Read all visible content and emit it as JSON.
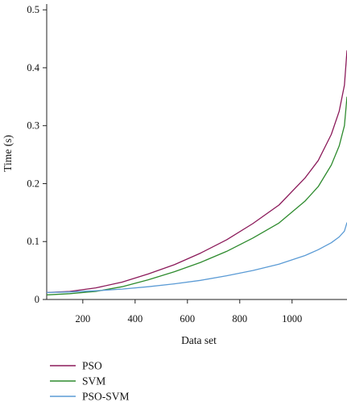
{
  "chart_data": {
    "type": "line",
    "xlabel": "Data set",
    "ylabel": "Time (s)",
    "xlim": [
      62,
      1210
    ],
    "ylim": [
      0,
      0.51
    ],
    "xticks": [
      200,
      400,
      600,
      800,
      1000
    ],
    "yticks": [
      0,
      0.1,
      0.2,
      0.3,
      0.4,
      0.5
    ],
    "ytick_labels": [
      "0",
      "0.1",
      "0.2",
      "0.3",
      "0.4",
      "0.5"
    ],
    "grid": false,
    "legend_position": "bottom-left",
    "series": [
      {
        "name": "PSO",
        "color": "#8b1a5a",
        "x": [
          62,
          150,
          250,
          350,
          450,
          550,
          650,
          750,
          850,
          950,
          1050,
          1100,
          1150,
          1180,
          1200,
          1210
        ],
        "y": [
          0.012,
          0.014,
          0.02,
          0.03,
          0.044,
          0.06,
          0.08,
          0.103,
          0.131,
          0.163,
          0.21,
          0.24,
          0.285,
          0.325,
          0.37,
          0.43
        ]
      },
      {
        "name": "SVM",
        "color": "#2e8b2e",
        "x": [
          62,
          150,
          250,
          350,
          450,
          550,
          650,
          750,
          850,
          950,
          1050,
          1100,
          1150,
          1180,
          1200,
          1210
        ],
        "y": [
          0.008,
          0.01,
          0.014,
          0.022,
          0.034,
          0.048,
          0.064,
          0.083,
          0.106,
          0.132,
          0.17,
          0.195,
          0.232,
          0.265,
          0.3,
          0.35
        ]
      },
      {
        "name": "PSO-SVM",
        "color": "#5b9bd5",
        "x": [
          62,
          150,
          250,
          350,
          450,
          550,
          650,
          750,
          850,
          950,
          1050,
          1100,
          1150,
          1180,
          1200,
          1210
        ],
        "y": [
          0.012,
          0.013,
          0.015,
          0.018,
          0.022,
          0.027,
          0.033,
          0.041,
          0.05,
          0.061,
          0.076,
          0.086,
          0.098,
          0.108,
          0.118,
          0.133
        ]
      }
    ]
  }
}
